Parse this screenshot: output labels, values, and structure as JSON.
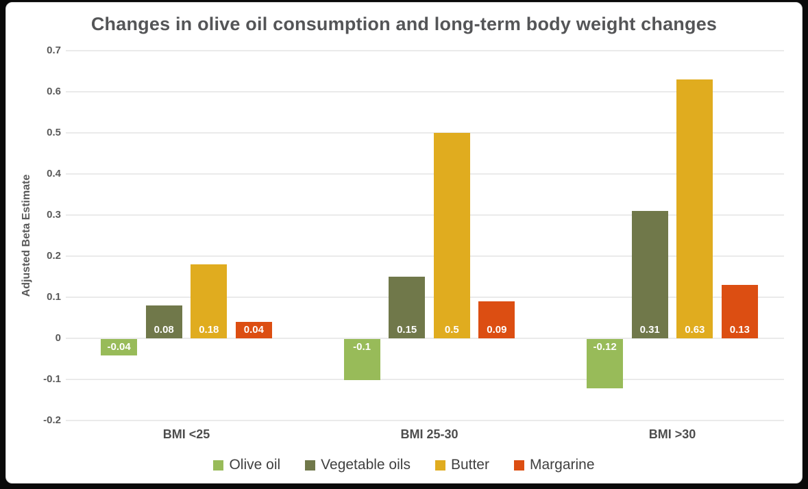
{
  "frame": {
    "background": "#0a0a0a",
    "card_background": "#ffffff",
    "card_border": "#d8d8d8"
  },
  "colors": {
    "title_text": "#545557",
    "axis_text": "#595959",
    "category_text": "#4d4d4d",
    "legend_text": "#3f3f3f",
    "gridline": "#eaeaea",
    "value_label_text": "#ffffff",
    "olive_oil": "#98BB59",
    "vegetable_oils": "#70784A",
    "butter": "#E0AC1F",
    "margarine": "#DC4E12"
  },
  "chart_data": {
    "type": "bar",
    "title": "Changes in olive oil consumption and long-term body weight changes",
    "xlabel": "",
    "ylabel": "Adjusted Beta Estimate",
    "ylim": [
      -0.2,
      0.7
    ],
    "y_ticks": [
      "0.7",
      "0.6",
      "0.5",
      "0.4",
      "0.3",
      "0.2",
      "0.1",
      "0",
      "-0.1",
      "-0.2"
    ],
    "grid": true,
    "legend_position": "bottom",
    "value_labels_shown": true,
    "categories": [
      "BMI <25",
      "BMI 25-30",
      "BMI >30"
    ],
    "series": [
      {
        "name": "Olive oil",
        "color": "#98BB59",
        "values": [
          -0.04,
          -0.1,
          -0.12
        ],
        "labels": [
          "-0.04",
          "-0.1",
          "-0.12"
        ]
      },
      {
        "name": "Vegetable oils",
        "color": "#70784A",
        "values": [
          0.08,
          0.15,
          0.31
        ],
        "labels": [
          "0.08",
          "0.15",
          "0.31"
        ]
      },
      {
        "name": "Butter",
        "color": "#E0AC1F",
        "values": [
          0.18,
          0.5,
          0.63
        ],
        "labels": [
          "0.18",
          "0.5",
          "0.63"
        ]
      },
      {
        "name": "Margarine",
        "color": "#DC4E12",
        "values": [
          0.04,
          0.09,
          0.13
        ],
        "labels": [
          "0.04",
          "0.09",
          "0.13"
        ]
      }
    ]
  }
}
